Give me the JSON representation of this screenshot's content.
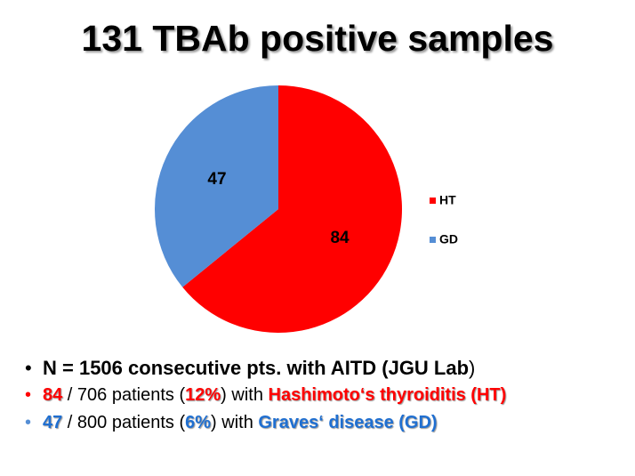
{
  "chart_data": {
    "type": "pie",
    "title": "131 TBAb positive samples",
    "categories": [
      "HT",
      "GD"
    ],
    "values": [
      84,
      47
    ],
    "colors": [
      "#ff0000",
      "#558ed5"
    ],
    "legend": "right"
  },
  "bullets": [
    {
      "color": "#000000",
      "segments": [
        {
          "text": "N = 1506 consecutive pts. with AITD (",
          "bold": true
        },
        {
          "text": "JGU Lab",
          "bold": true
        },
        {
          "text": ")",
          "bold": false
        }
      ]
    },
    {
      "color": "#ff0000",
      "segments": [
        {
          "text": "84",
          "bold": true,
          "color": "#ff0000"
        },
        {
          "text": " / 706 patients (",
          "bold": false
        },
        {
          "text": "12%",
          "bold": true,
          "color": "#ff0000"
        },
        {
          "text": ") with ",
          "bold": false
        },
        {
          "text": "Hashimoto‘s thyroiditis (HT)",
          "bold": true,
          "color": "#ff0000"
        }
      ]
    },
    {
      "color": "#558ed5",
      "segments": [
        {
          "text": "47",
          "bold": true,
          "color": "#1f6fd1"
        },
        {
          "text": " / 800 patients (",
          "bold": false
        },
        {
          "text": "6%",
          "bold": true,
          "color": "#1f6fd1"
        },
        {
          "text": ") with ",
          "bold": false
        },
        {
          "text": "Graves‘ disease (GD)",
          "bold": true,
          "color": "#1f6fd1"
        }
      ]
    }
  ]
}
